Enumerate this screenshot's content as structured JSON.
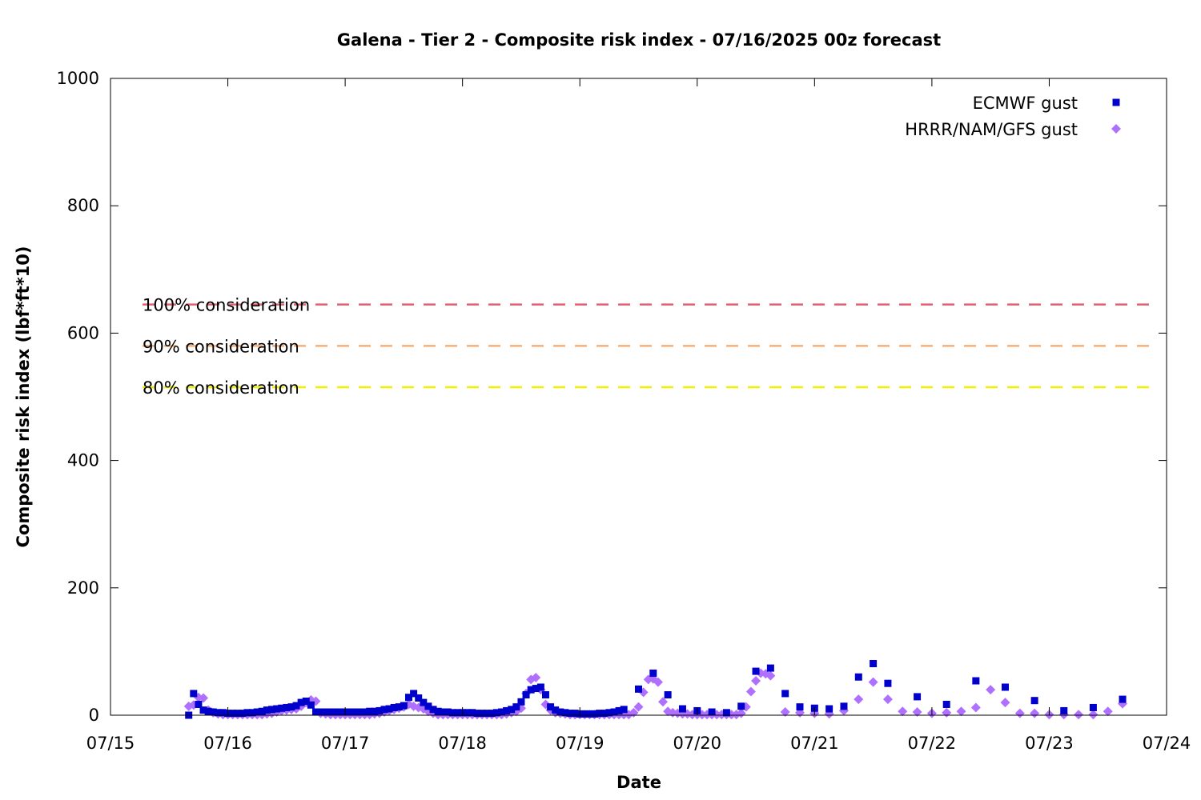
{
  "chart_data": {
    "type": "scatter",
    "title": "Galena - Tier 2 - Composite risk index - 07/16/2025 00z forecast",
    "xlabel": "Date",
    "ylabel": "Composite risk index (lbf*ft*10)",
    "x_axis_type": "date",
    "x_tick_labels": [
      "07/15",
      "07/16",
      "07/17",
      "07/18",
      "07/19",
      "07/20",
      "07/21",
      "07/22",
      "07/23",
      "07/24"
    ],
    "y_ticks": [
      0,
      200,
      400,
      600,
      800,
      1000
    ],
    "xlim": [
      "07/15",
      "07/24"
    ],
    "ylim": [
      0,
      1000
    ],
    "grid": false,
    "legend_position": "top-right",
    "reference_lines": [
      {
        "label": "100% consideration",
        "value": 645,
        "color": "#e06070",
        "style": "dashed"
      },
      {
        "label": "90% consideration",
        "value": 580,
        "color": "#f4b07a",
        "style": "dashed"
      },
      {
        "label": "80% consideration",
        "value": 515,
        "color": "#f0f000",
        "style": "dashed"
      }
    ],
    "series": [
      {
        "name": "ECMWF gust",
        "marker": "square",
        "color": "#0000cc",
        "points": [
          [
            "07/15 16:00",
            0
          ],
          [
            "07/15 17:00",
            34
          ],
          [
            "07/15 18:00",
            17
          ],
          [
            "07/15 19:00",
            8
          ],
          [
            "07/15 20:00",
            6
          ],
          [
            "07/15 21:00",
            5
          ],
          [
            "07/15 22:00",
            4
          ],
          [
            "07/15 23:00",
            4
          ],
          [
            "07/16 00:00",
            3
          ],
          [
            "07/16 01:00",
            3
          ],
          [
            "07/16 02:00",
            3
          ],
          [
            "07/16 03:00",
            3
          ],
          [
            "07/16 04:00",
            4
          ],
          [
            "07/16 05:00",
            4
          ],
          [
            "07/16 06:00",
            5
          ],
          [
            "07/16 07:00",
            6
          ],
          [
            "07/16 08:00",
            8
          ],
          [
            "07/16 09:00",
            9
          ],
          [
            "07/16 10:00",
            10
          ],
          [
            "07/16 11:00",
            11
          ],
          [
            "07/16 12:00",
            12
          ],
          [
            "07/16 13:00",
            13
          ],
          [
            "07/16 14:00",
            15
          ],
          [
            "07/16 15:00",
            20
          ],
          [
            "07/16 16:00",
            22
          ],
          [
            "07/16 17:00",
            16
          ],
          [
            "07/16 18:00",
            5
          ],
          [
            "07/16 19:00",
            5
          ],
          [
            "07/16 20:00",
            5
          ],
          [
            "07/16 21:00",
            5
          ],
          [
            "07/16 22:00",
            5
          ],
          [
            "07/16 23:00",
            5
          ],
          [
            "07/17 00:00",
            5
          ],
          [
            "07/17 01:00",
            5
          ],
          [
            "07/17 02:00",
            5
          ],
          [
            "07/17 03:00",
            5
          ],
          [
            "07/17 04:00",
            5
          ],
          [
            "07/17 05:00",
            6
          ],
          [
            "07/17 06:00",
            6
          ],
          [
            "07/17 07:00",
            7
          ],
          [
            "07/17 08:00",
            9
          ],
          [
            "07/17 09:00",
            10
          ],
          [
            "07/17 10:00",
            12
          ],
          [
            "07/17 11:00",
            13
          ],
          [
            "07/17 12:00",
            15
          ],
          [
            "07/17 13:00",
            28
          ],
          [
            "07/17 14:00",
            34
          ],
          [
            "07/17 15:00",
            27
          ],
          [
            "07/17 16:00",
            20
          ],
          [
            "07/17 17:00",
            14
          ],
          [
            "07/17 18:00",
            9
          ],
          [
            "07/17 19:00",
            6
          ],
          [
            "07/17 20:00",
            5
          ],
          [
            "07/17 21:00",
            5
          ],
          [
            "07/17 22:00",
            4
          ],
          [
            "07/17 23:00",
            4
          ],
          [
            "07/18 00:00",
            4
          ],
          [
            "07/18 01:00",
            4
          ],
          [
            "07/18 02:00",
            4
          ],
          [
            "07/18 03:00",
            3
          ],
          [
            "07/18 04:00",
            3
          ],
          [
            "07/18 05:00",
            3
          ],
          [
            "07/18 06:00",
            3
          ],
          [
            "07/18 07:00",
            4
          ],
          [
            "07/18 08:00",
            5
          ],
          [
            "07/18 09:00",
            7
          ],
          [
            "07/18 10:00",
            9
          ],
          [
            "07/18 11:00",
            13
          ],
          [
            "07/18 12:00",
            21
          ],
          [
            "07/18 13:00",
            32
          ],
          [
            "07/18 14:00",
            40
          ],
          [
            "07/18 15:00",
            42
          ],
          [
            "07/18 16:00",
            44
          ],
          [
            "07/18 17:00",
            32
          ],
          [
            "07/18 18:00",
            13
          ],
          [
            "07/18 19:00",
            8
          ],
          [
            "07/18 20:00",
            5
          ],
          [
            "07/18 21:00",
            4
          ],
          [
            "07/18 22:00",
            3
          ],
          [
            "07/18 23:00",
            3
          ],
          [
            "07/19 00:00",
            2
          ],
          [
            "07/19 01:00",
            2
          ],
          [
            "07/19 02:00",
            2
          ],
          [
            "07/19 03:00",
            2
          ],
          [
            "07/19 04:00",
            3
          ],
          [
            "07/19 05:00",
            3
          ],
          [
            "07/19 06:00",
            4
          ],
          [
            "07/19 07:00",
            5
          ],
          [
            "07/19 08:00",
            7
          ],
          [
            "07/19 09:00",
            9
          ],
          [
            "07/19 12:00",
            41
          ],
          [
            "07/19 15:00",
            66
          ],
          [
            "07/19 18:00",
            32
          ],
          [
            "07/19 21:00",
            10
          ],
          [
            "07/20 00:00",
            7
          ],
          [
            "07/20 03:00",
            5
          ],
          [
            "07/20 06:00",
            4
          ],
          [
            "07/20 09:00",
            14
          ],
          [
            "07/20 12:00",
            69
          ],
          [
            "07/20 15:00",
            74
          ],
          [
            "07/20 18:00",
            34
          ],
          [
            "07/20 21:00",
            13
          ],
          [
            "07/21 00:00",
            11
          ],
          [
            "07/21 03:00",
            10
          ],
          [
            "07/21 06:00",
            14
          ],
          [
            "07/21 09:00",
            60
          ],
          [
            "07/21 12:00",
            81
          ],
          [
            "07/21 15:00",
            50
          ],
          [
            "07/21 21:00",
            29
          ],
          [
            "07/22 03:00",
            17
          ],
          [
            "07/22 09:00",
            54
          ],
          [
            "07/22 15:00",
            44
          ],
          [
            "07/22 21:00",
            23
          ],
          [
            "07/23 03:00",
            7
          ],
          [
            "07/23 09:00",
            12
          ],
          [
            "07/23 15:00",
            25
          ]
        ]
      },
      {
        "name": "HRRR/NAM/GFS gust",
        "marker": "diamond",
        "color": "#b070ff",
        "points": [
          [
            "07/15 16:00",
            14
          ],
          [
            "07/15 17:00",
            16
          ],
          [
            "07/15 18:00",
            28
          ],
          [
            "07/15 19:00",
            27
          ],
          [
            "07/15 20:00",
            8
          ],
          [
            "07/15 21:00",
            4
          ],
          [
            "07/15 22:00",
            2
          ],
          [
            "07/15 23:00",
            1
          ],
          [
            "07/16 00:00",
            1
          ],
          [
            "07/16 01:00",
            1
          ],
          [
            "07/16 02:00",
            1
          ],
          [
            "07/16 03:00",
            1
          ],
          [
            "07/16 04:00",
            1
          ],
          [
            "07/16 05:00",
            1
          ],
          [
            "07/16 06:00",
            1
          ],
          [
            "07/16 07:00",
            1
          ],
          [
            "07/16 08:00",
            2
          ],
          [
            "07/16 09:00",
            3
          ],
          [
            "07/16 10:00",
            5
          ],
          [
            "07/16 11:00",
            7
          ],
          [
            "07/16 12:00",
            8
          ],
          [
            "07/16 13:00",
            9
          ],
          [
            "07/16 14:00",
            10
          ],
          [
            "07/16 15:00",
            14
          ],
          [
            "07/16 16:00",
            20
          ],
          [
            "07/16 17:00",
            24
          ],
          [
            "07/16 18:00",
            22
          ],
          [
            "07/16 19:00",
            3
          ],
          [
            "07/16 20:00",
            2
          ],
          [
            "07/16 21:00",
            1
          ],
          [
            "07/16 22:00",
            1
          ],
          [
            "07/16 23:00",
            1
          ],
          [
            "07/17 00:00",
            1
          ],
          [
            "07/17 01:00",
            1
          ],
          [
            "07/17 02:00",
            1
          ],
          [
            "07/17 03:00",
            1
          ],
          [
            "07/17 04:00",
            1
          ],
          [
            "07/17 05:00",
            1
          ],
          [
            "07/17 06:00",
            2
          ],
          [
            "07/17 07:00",
            3
          ],
          [
            "07/17 08:00",
            5
          ],
          [
            "07/17 09:00",
            7
          ],
          [
            "07/17 10:00",
            9
          ],
          [
            "07/17 11:00",
            11
          ],
          [
            "07/17 12:00",
            13
          ],
          [
            "07/17 13:00",
            17
          ],
          [
            "07/17 14:00",
            14
          ],
          [
            "07/17 15:00",
            12
          ],
          [
            "07/17 16:00",
            10
          ],
          [
            "07/17 17:00",
            6
          ],
          [
            "07/17 18:00",
            3
          ],
          [
            "07/17 19:00",
            1
          ],
          [
            "07/17 20:00",
            1
          ],
          [
            "07/17 21:00",
            1
          ],
          [
            "07/17 22:00",
            1
          ],
          [
            "07/17 23:00",
            1
          ],
          [
            "07/18 00:00",
            1
          ],
          [
            "07/18 01:00",
            1
          ],
          [
            "07/18 02:00",
            1
          ],
          [
            "07/18 03:00",
            1
          ],
          [
            "07/18 04:00",
            1
          ],
          [
            "07/18 05:00",
            1
          ],
          [
            "07/18 06:00",
            1
          ],
          [
            "07/18 07:00",
            1
          ],
          [
            "07/18 08:00",
            1
          ],
          [
            "07/18 09:00",
            2
          ],
          [
            "07/18 10:00",
            4
          ],
          [
            "07/18 11:00",
            6
          ],
          [
            "07/18 12:00",
            11
          ],
          [
            "07/18 13:00",
            34
          ],
          [
            "07/18 14:00",
            56
          ],
          [
            "07/18 15:00",
            59
          ],
          [
            "07/18 16:00",
            40
          ],
          [
            "07/18 17:00",
            17
          ],
          [
            "07/18 18:00",
            8
          ],
          [
            "07/18 19:00",
            4
          ],
          [
            "07/18 20:00",
            3
          ],
          [
            "07/18 21:00",
            2
          ],
          [
            "07/18 22:00",
            1
          ],
          [
            "07/18 23:00",
            1
          ],
          [
            "07/19 00:00",
            1
          ],
          [
            "07/19 01:00",
            1
          ],
          [
            "07/19 02:00",
            1
          ],
          [
            "07/19 03:00",
            1
          ],
          [
            "07/19 04:00",
            1
          ],
          [
            "07/19 05:00",
            1
          ],
          [
            "07/19 06:00",
            1
          ],
          [
            "07/19 07:00",
            1
          ],
          [
            "07/19 08:00",
            1
          ],
          [
            "07/19 09:00",
            1
          ],
          [
            "07/19 10:00",
            1
          ],
          [
            "07/19 11:00",
            4
          ],
          [
            "07/19 12:00",
            13
          ],
          [
            "07/19 13:00",
            36
          ],
          [
            "07/19 14:00",
            56
          ],
          [
            "07/19 15:00",
            57
          ],
          [
            "07/19 16:00",
            52
          ],
          [
            "07/19 17:00",
            21
          ],
          [
            "07/19 18:00",
            6
          ],
          [
            "07/19 19:00",
            4
          ],
          [
            "07/19 20:00",
            3
          ],
          [
            "07/19 21:00",
            2
          ],
          [
            "07/19 22:00",
            2
          ],
          [
            "07/19 23:00",
            1
          ],
          [
            "07/20 00:00",
            1
          ],
          [
            "07/20 01:00",
            1
          ],
          [
            "07/20 02:00",
            1
          ],
          [
            "07/20 03:00",
            1
          ],
          [
            "07/20 04:00",
            1
          ],
          [
            "07/20 05:00",
            1
          ],
          [
            "07/20 06:00",
            1
          ],
          [
            "07/20 07:00",
            1
          ],
          [
            "07/20 08:00",
            1
          ],
          [
            "07/20 09:00",
            3
          ],
          [
            "07/20 10:00",
            13
          ],
          [
            "07/20 11:00",
            37
          ],
          [
            "07/20 12:00",
            54
          ],
          [
            "07/20 13:00",
            66
          ],
          [
            "07/20 14:00",
            65
          ],
          [
            "07/20 15:00",
            62
          ],
          [
            "07/20 18:00",
            5
          ],
          [
            "07/20 21:00",
            4
          ],
          [
            "07/21 00:00",
            3
          ],
          [
            "07/21 03:00",
            2
          ],
          [
            "07/21 06:00",
            7
          ],
          [
            "07/21 09:00",
            25
          ],
          [
            "07/21 12:00",
            52
          ],
          [
            "07/21 15:00",
            25
          ],
          [
            "07/21 18:00",
            6
          ],
          [
            "07/21 21:00",
            5
          ],
          [
            "07/22 00:00",
            3
          ],
          [
            "07/22 03:00",
            4
          ],
          [
            "07/22 06:00",
            6
          ],
          [
            "07/22 09:00",
            12
          ],
          [
            "07/22 12:00",
            40
          ],
          [
            "07/22 15:00",
            20
          ],
          [
            "07/22 18:00",
            3
          ],
          [
            "07/22 21:00",
            3
          ],
          [
            "07/23 00:00",
            1
          ],
          [
            "07/23 03:00",
            1
          ],
          [
            "07/23 06:00",
            1
          ],
          [
            "07/23 09:00",
            1
          ],
          [
            "07/23 12:00",
            6
          ],
          [
            "07/23 15:00",
            18
          ]
        ]
      }
    ]
  }
}
